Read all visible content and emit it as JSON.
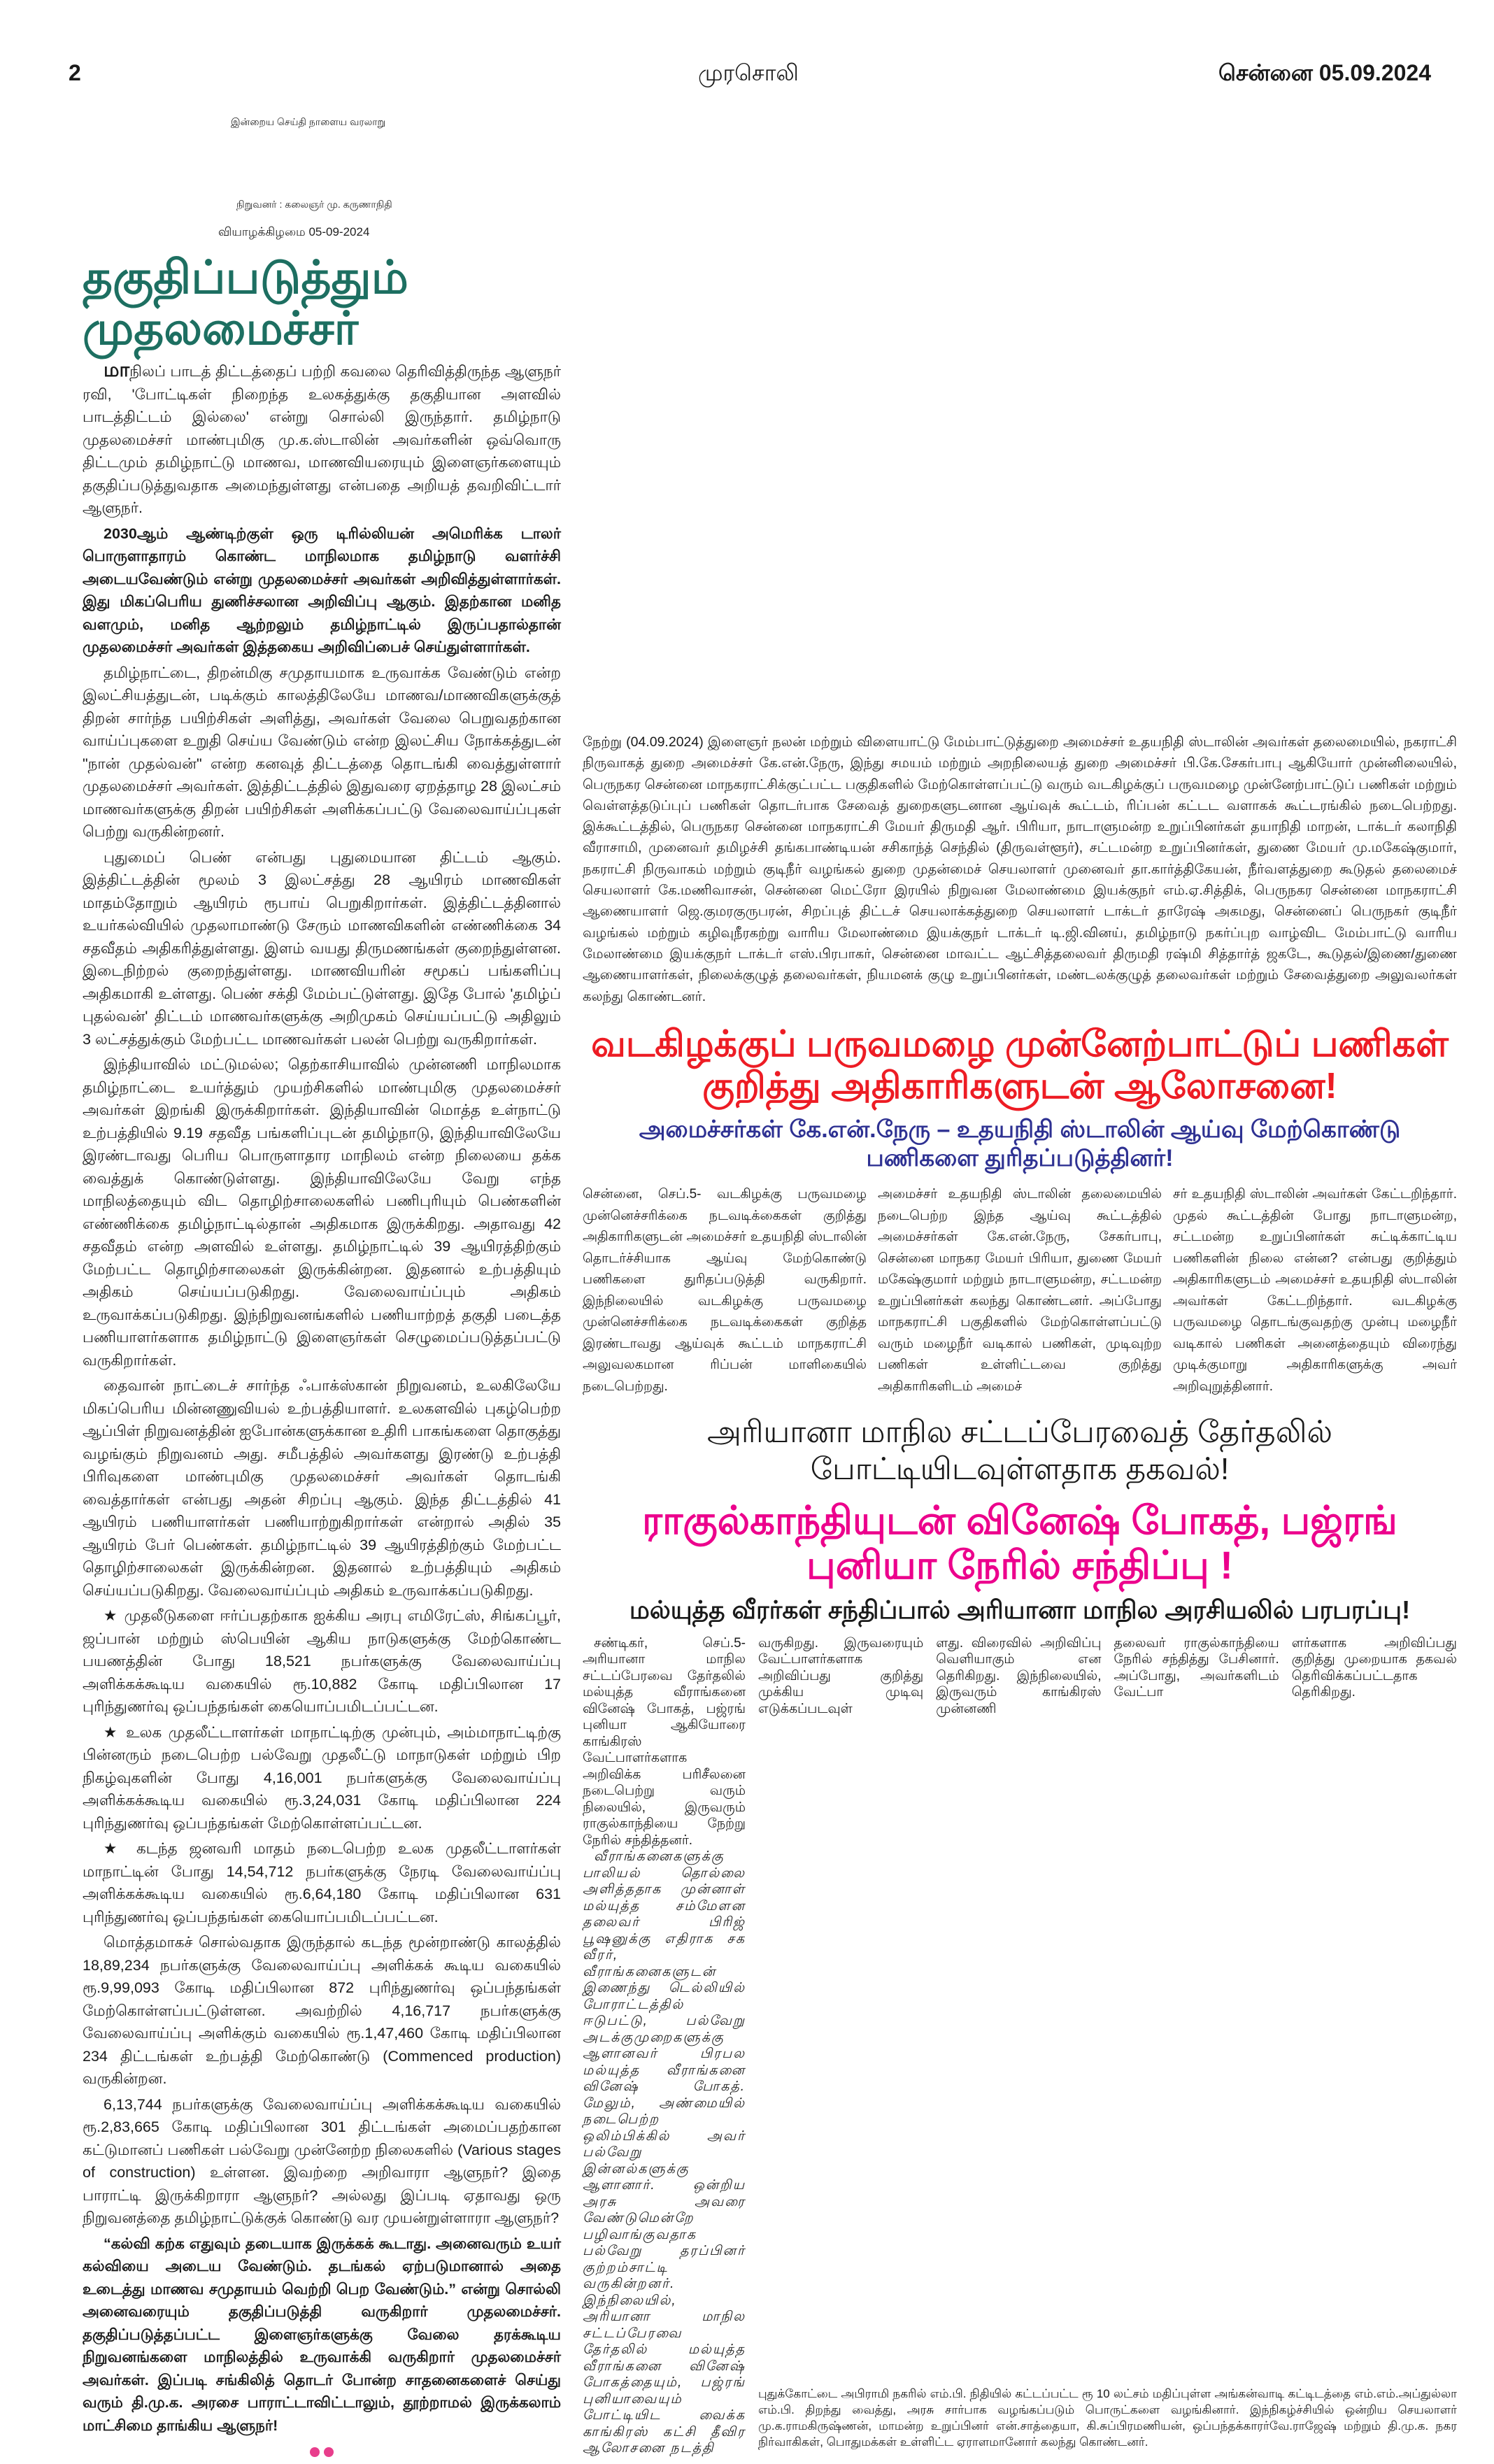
{
  "masthead": {
    "page_number": "2",
    "paper_name": "முரசொலி",
    "city_date": "சென்னை 05.09.2024",
    "tagline": "இன்றைய செய்தி நாளைய வரலாறு",
    "founder": "நிறுவனர் : கலைஞர் மு. கருணாநிதி",
    "editorial_date": "வியாழக்கிழமை 05-09-2024"
  },
  "editorial": {
    "title": "தகுதிப்படுத்தும் முதலமைச்சர்",
    "drop_letters": "மா",
    "paragraphs": [
      "நிலப் பாடத் திட்டத்தைப் பற்றி கவலை தெரிவித்திருந்த ஆளுநர் ரவி, 'போட்டிகள் நிறைந்த உலகத்துக்கு தகுதியான அளவில் பாடத்திட்டம் இல்லை' என்று சொல்லி இருந்தார். தமிழ்நாடு முதலமைச்சர் மாண்புமிகு மு.க.ஸ்டாலின் அவர்களின் ஒவ்வொரு திட்டமும் தமிழ்நாட்டு மாணவ, மாணவியரையும் இளைஞர்களையும் தகுதிப்படுத்துவதாக அமைந்துள்ளது என்பதை அறியத் தவறிவிட்டார் ஆளுநர்.",
      "2030ஆம் ஆண்டிற்குள் ஒரு டிரில்லியன் அமெரிக்க டாலர் பொருளாதாரம் கொண்ட மாநிலமாக தமிழ்நாடு வளர்ச்சி அடையவேண்டும் என்று முதலமைச்சர் அவர்கள் அறிவித்துள்ளார்கள். இது மிகப்பெரிய துணிச்சலான அறிவிப்பு ஆகும். இதற்கான மனித வளமும், மனித ஆற்றலும் தமிழ்நாட்டில் இருப்பதால்தான் முதலமைச்சர் அவர்கள் இத்தகைய அறிவிப்பைச் செய்துள்ளார்கள்.",
      "தமிழ்நாட்டை, திறன்மிகு சமுதாயமாக உருவாக்க வேண்டும் என்ற இலட்சியத்துடன், படிக்கும் காலத்திலேயே மாணவ/மாணவிகளுக்குத் திறன் சார்ந்த பயிற்சிகள் அளித்து, அவர்கள் வேலை பெறுவதற்கான வாய்ப்புகளை உறுதி செய்ய வேண்டும் என்ற இலட்சிய நோக்கத்துடன் \"நான் முதல்வன்\" என்ற கனவுத் திட்டத்தை தொடங்கி வைத்துள்ளார் முதலமைச்சர் அவர்கள். இத்திட்டத்தில் இதுவரை ஏறத்தாழ 28 இலட்சம் மாணவர்களுக்கு திறன் பயிற்சிகள் அளிக்கப்பட்டு வேலைவாய்ப்புகள் பெற்று வருகின்றனர்.",
      "புதுமைப் பெண் என்பது புதுமையான திட்டம் ஆகும். இத்திட்டத்தின் மூலம் 3 இலட்சத்து 28 ஆயிரம் மாணவிகள் மாதம்தோறும் ஆயிரம் ரூபாய் பெறுகிறார்கள். இத்திட்டத்தினால் உயர்கல்வியில் முதலாமாண்டு சேரும் மாணவிகளின் எண்ணிக்கை 34 சதவீதம் அதிகரித்துள்ளது. இளம் வயது திருமணங்கள் குறைந்துள்ளன. இடைநிற்றல் குறைந்துள்ளது. மாணவியரின் சமூகப் பங்களிப்பு அதிகமாகி உள்ளது. பெண் சக்தி மேம்பட்டுள்ளது. இதே போல் 'தமிழ்ப் புதல்வன்' திட்டம் மாணவர்களுக்கு அறிமுகம் செய்யப்பட்டு அதிலும் 3 லட்சத்துக்கும் மேற்பட்ட மாணவர்கள் பலன் பெற்று வருகிறார்கள்.",
      "இந்தியாவில் மட்டுமல்ல; தெற்காசியாவில் முன்னணி மாநிலமாக தமிழ்நாட்டை உயர்த்தும் முயற்சிகளில் மாண்புமிகு முதலமைச்சர் அவர்கள் இறங்கி இருக்கிறார்கள். இந்தியாவின் மொத்த உள்நாட்டு உற்பத்தியில் 9.19 சதவீத பங்களிப்புடன் தமிழ்நாடு, இந்தியாவிலேயே இரண்டாவது பெரிய பொருளாதார மாநிலம் என்ற நிலையை தக்க வைத்துக் கொண்டுள்ளது. இந்தியாவிலேயே வேறு எந்த மாநிலத்தையும் விட தொழிற்சாலைகளில் பணிபுரியும் பெண்களின் எண்ணிக்கை தமிழ்நாட்டில்தான் அதிகமாக இருக்கிறது. அதாவது 42 சதவீதம் என்ற அளவில் உள்ளது. தமிழ்நாட்டில் 39 ஆயிரத்திற்கும் மேற்பட்ட தொழிற்சாலைகள் இருக்கின்றன. இதனால் உற்பத்தியும் அதிகம் செய்யப்படுகிறது. வேலைவாய்ப்பும் அதிகம் உருவாக்கப்படுகிறது. இந்நிறுவனங்களில் பணியாற்றத் தகுதி படைத்த பணியாளர்களாக தமிழ்நாட்டு இளைஞர்கள் செழுமைப்படுத்தப்பட்டு வருகிறார்கள்.",
      "தைவான் நாட்டைச் சார்ந்த ஃபாக்ஸ்கான் நிறுவனம், உலகிலேயே மிகப்பெரிய மின்னணுவியல் உற்பத்தியாளர். உலகளவில் புகழ்பெற்ற ஆப்பிள் நிறுவனத்தின் ஐபோன்களுக்கான உதிரி பாகங்களை தொகுத்து வழங்கும் நிறுவனம் அது. சமீபத்தில் அவர்களது இரண்டு உற்பத்தி பிரிவுகளை மாண்புமிகு முதலமைச்சர் அவர்கள் தொடங்கி வைத்தார்கள் என்பது அதன் சிறப்பு ஆகும். இந்த திட்டத்தில் 41 ஆயிரம் பணியாளர்கள் பணியாற்றுகிறார்கள் என்றால் அதில் 35 ஆயிரம் பேர் பெண்கள். தமிழ்நாட்டில் 39 ஆயிரத்திற்கும் மேற்பட்ட தொழிற்சாலைகள் இருக்கின்றன. இதனால் உற்பத்தியும் அதிகம் செய்யப்படுகிறது. வேலைவாய்ப்பும் அதிகம் உருவாக்கப்படுகிறது.",
      "★ முதலீடுகளை ஈர்ப்பதற்காக ஐக்கிய அரபு எமிரேட்ஸ், சிங்கப்பூர், ஜப்பான் மற்றும் ஸ்பெயின் ஆகிய நாடுகளுக்கு மேற்கொண்ட பயணத்தின் போது 18,521 நபர்களுக்கு வேலைவாய்ப்பு அளிக்கக்கூடிய வகையில் ரூ.10,882 கோடி மதிப்பிலான 17 புரிந்துணர்வு ஒப்பந்தங்கள் கையொப்பமிடப்பட்டன.",
      "★ உலக முதலீட்டாளர்கள் மாநாட்டிற்கு முன்பும், அம்மாநாட்டிற்கு பின்னரும் நடைபெற்ற பல்வேறு முதலீட்டு மாநாடுகள் மற்றும் பிற நிகழ்வுகளின் போது 4,16,001 நபர்களுக்கு வேலைவாய்ப்பு அளிக்கக்கூடிய வகையில் ரூ.3,24,031 கோடி மதிப்பிலான 224 புரிந்துணர்வு ஒப்பந்தங்கள் மேற்கொள்ளப்பட்டன.",
      "★ கடந்த ஜனவரி மாதம் நடைபெற்ற உலக முதலீட்டாளர்கள் மாநாட்டின் போது 14,54,712 நபர்களுக்கு நேரடி வேலைவாய்ப்பு அளிக்கக்கூடிய வகையில் ரூ.6,64,180 கோடி மதிப்பிலான 631 புரிந்துணர்வு ஒப்பந்தங்கள் கையொப்பமிடப்பட்டன.",
      "மொத்தமாகச் சொல்வதாக இருந்தால் கடந்த மூன்றாண்டு காலத்தில் 18,89,234 நபர்களுக்கு வேலைவாய்ப்பு அளிக்கக் கூடிய வகையில் ரூ.9,99,093 கோடி மதிப்பிலான 872 புரிந்துணர்வு ஒப்பந்தங்கள் மேற்கொள்ளப்பட்டுள்ளன. அவற்றில் 4,16,717 நபர்களுக்கு வேலைவாய்ப்பு அளிக்கும் வகையில் ரூ.1,47,460 கோடி மதிப்பிலான 234 திட்டங்கள் உற்பத்தி மேற்கொண்டு (Commenced production) வருகின்றன.",
      "6,13,744 நபர்களுக்கு வேலைவாய்ப்பு அளிக்கக்கூடிய வகையில் ரூ.2,83,665 கோடி மதிப்பிலான 301 திட்டங்கள் அமைப்பதற்கான கட்டுமானப் பணிகள் பல்வேறு முன்னேற்ற நிலைகளில் (Various stages of construction) உள்ளன. இவற்றை அறிவாரா ஆளுநர்? இதை பாராட்டி இருக்கிறாரா ஆளுநர்? அல்லது இப்படி ஏதாவது ஒரு நிறுவனத்தை தமிழ்நாட்டுக்குக் கொண்டு வர முயன்றுள்ளாரா ஆளுநர்?",
      "“கல்வி கற்க எதுவும் தடையாக இருக்கக் கூடாது. அனைவரும் உயர் கல்வியை அடைய வேண்டும். தடங்கல் ஏற்படுமானால் அதை உடைத்து மாணவ சமுதாயம் வெற்றி பெற வேண்டும்.” என்று சொல்லி அனைவரையும் தகுதிப்படுத்தி வருகிறார் முதலமைச்சர். தகுதிப்படுத்தப்பட்ட இளைஞர்களுக்கு வேலை தரக்கூடிய நிறுவனங்களை மாநிலத்தில் உருவாக்கி வருகிறார் முதலமைச்சர் அவர்கள். இப்படி சங்கிலித் தொடர் போன்ற சாதனைகளைச் செய்து வரும் தி.மு.க. அரசை பாராட்டாவிட்டாலும், தூற்றாமல் இருக்கலாம் மாட்சிமை தாங்கிய ஆளுநர்!"
    ]
  },
  "monsoon_story": {
    "lead": "நேற்று (04.09.2024) இளைஞர் நலன் மற்றும் விளையாட்டு மேம்பாட்டுத்துறை அமைச்சர் உதயநிதி ஸ்டாலின் அவர்கள் தலைமையில், நகராட்சி நிருவாகத் துறை அமைச்சர் கே.என்.நேரு, இந்து சமயம் மற்றும் அறநிலையத் துறை அமைச்சர் பி.கே.சேகர்பாபு ஆகியோர் முன்னிலையில், பெருநகர சென்னை மாநகராட்சிக்குட்பட்ட பகுதிகளில் மேற்கொள்ளப்பட்டு வரும் வடகிழக்குப் பருவமழை முன்னேற்பாட்டுப் பணிகள் மற்றும் வெள்ளத்தடுப்புப் பணிகள் தொடர்பாக சேவைத் துறைகளுடனான ஆய்வுக் கூட்டம், ரிப்பன் கட்டட வளாகக் கூட்டரங்கில் நடைபெற்றது. இக்கூட்டத்தில், பெருநகர சென்னை மாநகராட்சி மேயர் திருமதி ஆர். பிரியா, நாடாளுமன்ற உறுப்பினர்கள் தயாநிதி மாறன், டாக்டர் கலாநிதி வீராசாமி, முனைவர் தமிழச்சி தங்கபாண்டியன் சசிகாந்த் செந்தில் (திருவள்ளூர்), சட்டமன்ற உறுப்பினர்கள், துணை மேயர் மு.மகேஷ்குமார், நகராட்சி நிருவாகம் மற்றும் குடிநீர் வழங்கல் துறை முதன்மைச் செயலாளர் முனைவர் தா.கார்த்திகேயன், நீர்வளத்துறை கூடுதல் தலைமைச் செயலாளர் கே.மணிவாசன், சென்னை மெட்ரோ இரயில் நிறுவன மேலாண்மை இயக்குநர் எம்.ஏ.சித்திக், பெருநகர சென்னை மாநகராட்சி ஆணையாளர் ஜெ.குமரகுருபரன், சிறப்புத் திட்டச் செயலாக்கத்துறை செயலாளர் டாக்டர் தாரேஷ் அகமது, சென்னைப் பெருநகர் குடிநீர் வழங்கல் மற்றும் கழிவுநீரகற்று வாரிய மேலாண்மை இயக்குநர் டாக்டர் டி.ஜி.வினய், தமிழ்நாடு நகர்ப்புற வாழ்விட மேம்பாட்டு வாரிய மேலாண்மை இயக்குநர் டாக்டர் எஸ்.பிரபாகர், சென்னை மாவட்ட ஆட்சித்தலைவர் திருமதி ரஷ்மி சித்தார்த் ஜகடே, கூடுதல்/இணை/துணை ஆணையாளர்கள், நிலைக்குழுத் தலைவர்கள், நியமனக் குழு உறுப்பினர்கள், மண்டலக்குழுத் தலைவர்கள் மற்றும் சேவைத்துறை அலுவலர்கள் கலந்து கொண்டனர்.",
    "headline": "வடகிழக்குப் பருவமழை முன்னேற்பாட்டுப் பணிகள் குறித்து அதிகாரிகளுடன் ஆலோசனை!",
    "subheadline": "அமைச்சர்கள் கே.என்.நேரு – உதயநிதி ஸ்டாலின் ஆய்வு மேற்கொண்டு பணிகளை துரிதப்படுத்தினர்!",
    "columns": [
      "சென்னை, செப்.5- வடகிழக்கு பருவமழை முன்னெச்சரிக்கை நடவடிக்கைகள் குறித்து அதிகாரிகளுடன் அமைச்சர் உதயநிதி ஸ்டாலின் தொடர்ச்சியாக ஆய்வு மேற்கொண்டு பணிகளை துரிதப்படுத்தி வருகிறார். இந்நிலையில் வடகிழக்கு பருவமழை முன்னெச்சரிக்கை நடவடிக்கைகள் குறித்த இரண்டாவது ஆய்வுக் கூட்டம் மாநகராட்சி அலுவலகமான ரிப்பன் மாளிகையில் நடைபெற்றது.",
      "அமைச்சர் உதயநிதி ஸ்டாலின் தலைமையில் நடைபெற்ற இந்த ஆய்வு கூட்டத்தில் அமைச்சர்கள் கே.என்.நேரு, சேகர்பாபு, சென்னை மாநகர மேயர் பிரியா, துணை மேயர் மகேஷ்குமார் மற்றும் நாடாளுமன்ற, சட்டமன்ற உறுப்பினர்கள் கலந்து கொண்டனர். அப்போது மாநகராட்சி பகுதிகளில் மேற்கொள்ளப்பட்டு வரும் மழைநீர் வடிகால் பணிகள், முடிவுற்ற பணிகள் உள்ளிட்டவை குறித்து அதிகாரிகளிடம் அமைச்",
      "சர் உதயநிதி ஸ்டாலின் அவர்கள் கேட்டறிந்தார். முதல் கூட்டத்தின் போது நாடாளுமன்ற, சட்டமன்ற உறுப்பினர்கள் சுட்டிக்காட்டிய பணிகளின் நிலை என்ன? என்பது குறித்தும் அதிகாரிகளுடம் அமைச்சர் உதயநிதி ஸ்டாலின் அவர்கள் கேட்டறிந்தார். வடகிழக்கு பருவமழை தொடங்குவதற்கு முன்பு மழைநீர் வடிகால் பணிகள் அனைத்தையும் விரைந்து முடிக்குமாறு அதிகாரிகளுக்கு அவர் அறிவுறுத்தினார்."
    ]
  },
  "haryana_story": {
    "kicker": "அரியானா மாநில சட்டப்பேரவைத் தேர்தலில் போட்டியிடவுள்ளதாக தகவல்!",
    "headline": "ராகுல்காந்தியுடன் வினேஷ் போகத், பஜ்ரங் புனியா நேரில் சந்திப்பு !",
    "subheadline": "மல்யுத்த வீரர்கள் சந்திப்பால் அரியானா மாநில அரசியலில் பரபரப்பு!",
    "col1_p1": "சண்டிகர், செப்.5- அரியானா மாநில சட்டப்பேரவை தேர்தலில் மல்யுத்த வீராங்கனை வினேஷ் போகத், பஜ்ரங் புனியா ஆகியோரை காங்கிரஸ் வேட்பாளர்களாக அறிவிக்க பரிசீலனை நடைபெற்று வரும் நிலையில், இருவரும் ராகுல்காந்தியை நேற்று நேரில் சந்தித்தனர்.",
    "col1_p2": "வீராங்கனைகளுக்கு பாலியல் தொல்லை அளித்ததாக முன்னாள் மல்யுத்த சம்மேளன தலைவர் பிரிஜ் பூஷனுக்கு எதிராக சக வீரர், வீராங்கனைகளுடன் இணைந்து டெல்லியில் போராட்டத்தில் ஈடுபட்டு, பல்வேறு அடக்குமுறைகளுக்கு ஆளானவர் பிரபல மல்யுத்த வீராங்கனை வினேஷ் போகத். மேலும், அண்மையில் நடைபெற்ற ஒலிம்பிக்கில் அவர் பல்வேறு இன்னல்களுக்கு ஆளானார். ஒன்றிய அரசு அவரை வேண்டுமென்றே பழிவாங்குவதாக பல்வேறு தரப்பினர் குற்றம்சாட்டி வருகின்றனர். இந்நிலையில், அரியானா மாநில சட்டப்பேரவை தேர்தலில் மல்யுத்த வீராங்கனை வினேஷ் போகத்தையும், பஜ்ரங் புனியாவையும் போட்டியிட வைக்க காங்கிரஸ் கட்சி தீவிர ஆலோசனை நடத்தி",
    "col2": "வருகிறது. இருவரையும் வேட்பாளர்களாக அறிவிப்பது குறித்து முக்கிய முடிவு எடுக்கப்படவுள்",
    "col3": "ளது. விரைவில் அறிவிப்பு வெளியாகும் என தெரிகிறது. இந்நிலையில், இருவரும் காங்கிரஸ் முன்னணி",
    "col4": "தலைவர் ராகுல்காந்தியை நேரில் சந்தித்து பேசினார். அப்போது, அவர்களிடம் வேட்பா",
    "col5": "ளர்களாக அறிவிப்பது குறித்து முறையாக தகவல் தெரிவிக்கப்பட்டதாக தெரிகிறது."
  },
  "photo_caption": "புதுக்கோட்டை அபிராமி நகரில் எம்.பி. நிதியில் கட்டப்பட்ட ரூ 10 லட்சம் மதிப்புள்ள அங்கன்வாடி கட்டிடத்தை எம்.எம்.அப்துல்லா எம்.பி. திறந்து வைத்து, அரசு சார்பாக வழங்கப்படும் பொருட்களை வழங்கினார். இந்நிகழ்ச்சியில் ஒன்றிய செயலாளர் மு.க.ராமகிருஷ்ணன், மாமன்ற உறுப்பினர் என்.சாத்தையா, கி.சுப்பிரமணியன், ஒப்பந்தக்காரர்வே.ராஜேஷ் மற்றும் தி.மு.க. நகர நிர்வாகிகள், பொதுமக்கள் உள்ளிட்ட ஏராளமானோர் கலந்து கொண்டனர்.",
  "colors": {
    "editorial_title": "#1d6f61",
    "red_headline": "#ed1c24",
    "blue_subheadline": "#2e3192",
    "magenta_headline": "#ec008c",
    "end_dots": "#e83e8c"
  }
}
